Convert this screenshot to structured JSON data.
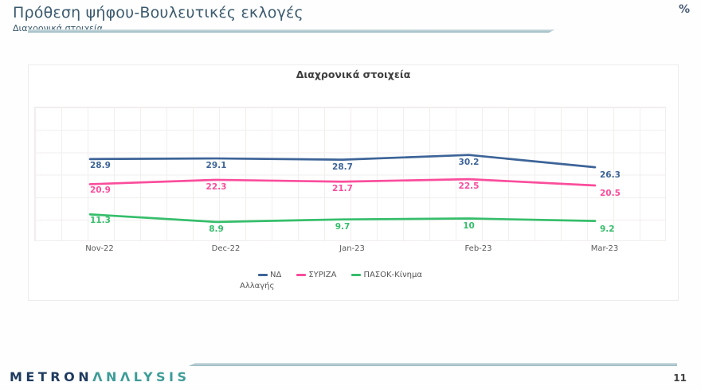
{
  "header": {
    "title": "Πρόθεση ψήφου-Βουλευτικές εκλογές",
    "subtitle": "Διαχρονικά στοιχεία",
    "unit_label": "%"
  },
  "theme": {
    "accent_line": "#a7c3ca",
    "title_color": "#3b5a6e"
  },
  "chart_data": {
    "type": "line",
    "title": "Διαχρονικά στοιχεία",
    "categories": [
      "Nov-22",
      "Dec-22",
      "Jan-23",
      "Feb-23",
      "Mar-23"
    ],
    "series": [
      {
        "name": "ΝΔ",
        "color": "#3d6498",
        "values": [
          28.9,
          29.1,
          28.7,
          30.2,
          26.3
        ]
      },
      {
        "name": "ΣΥΡΙΖΑ",
        "color": "#fa4d9c",
        "values": [
          20.9,
          22.3,
          21.7,
          22.5,
          20.5
        ]
      },
      {
        "name": "ΠΑΣΟΚ-Κίνημα Αλλαγής",
        "color": "#36be6b",
        "values": [
          11.3,
          8.9,
          9.7,
          10,
          9.2
        ]
      }
    ],
    "ylim": [
      0,
      45
    ],
    "grid": true,
    "legend_position": "bottom",
    "legend": {
      "row1": [
        "ΝΔ",
        "ΣΥΡΙΖΑ",
        "ΠΑΣΟΚ-Κίνημα"
      ],
      "row2": "Αλλαγής"
    },
    "value_labels_shown": true,
    "axis_label_color": "#595959"
  },
  "footer": {
    "logo_primary": "METRON",
    "logo_secondary": "ΛNΛLYSIS",
    "logo_primary_color": "#1e3a5f",
    "logo_secondary_color": "#3d9c98",
    "page_number": "11"
  }
}
